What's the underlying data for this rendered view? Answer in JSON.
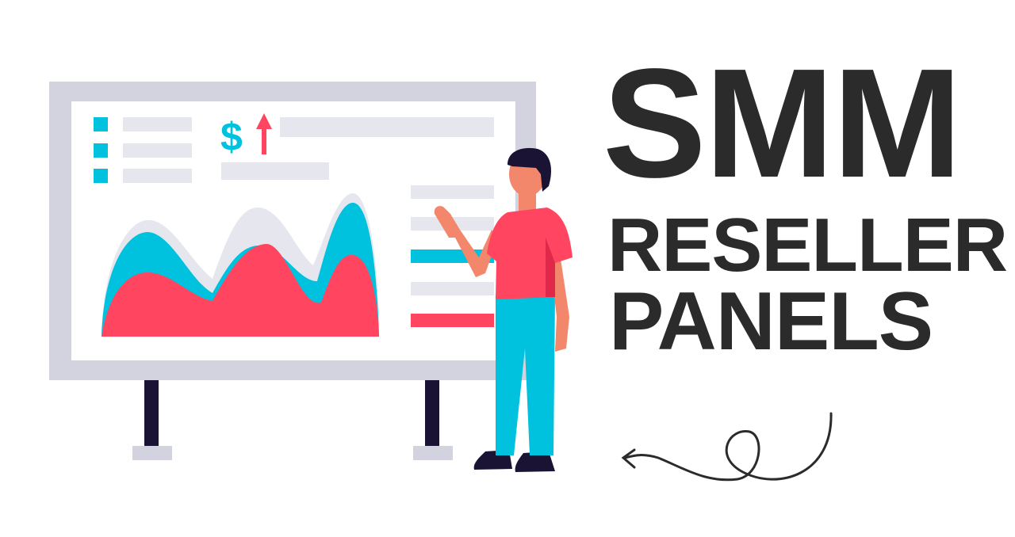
{
  "headline": {
    "line1": "SMM",
    "line2": "RESELLER",
    "line3": "PANELS"
  },
  "illustration": {
    "board_icon": "dollar-up-arrow-icon",
    "board_symbol": "$",
    "colors": {
      "text": "#2b2b2b",
      "teal": "#00c2de",
      "red": "#ff4560",
      "gray": "#d2d3de",
      "light_gray": "#e6e7ee",
      "navy": "#1a1333",
      "skin": "#f2876b"
    }
  }
}
